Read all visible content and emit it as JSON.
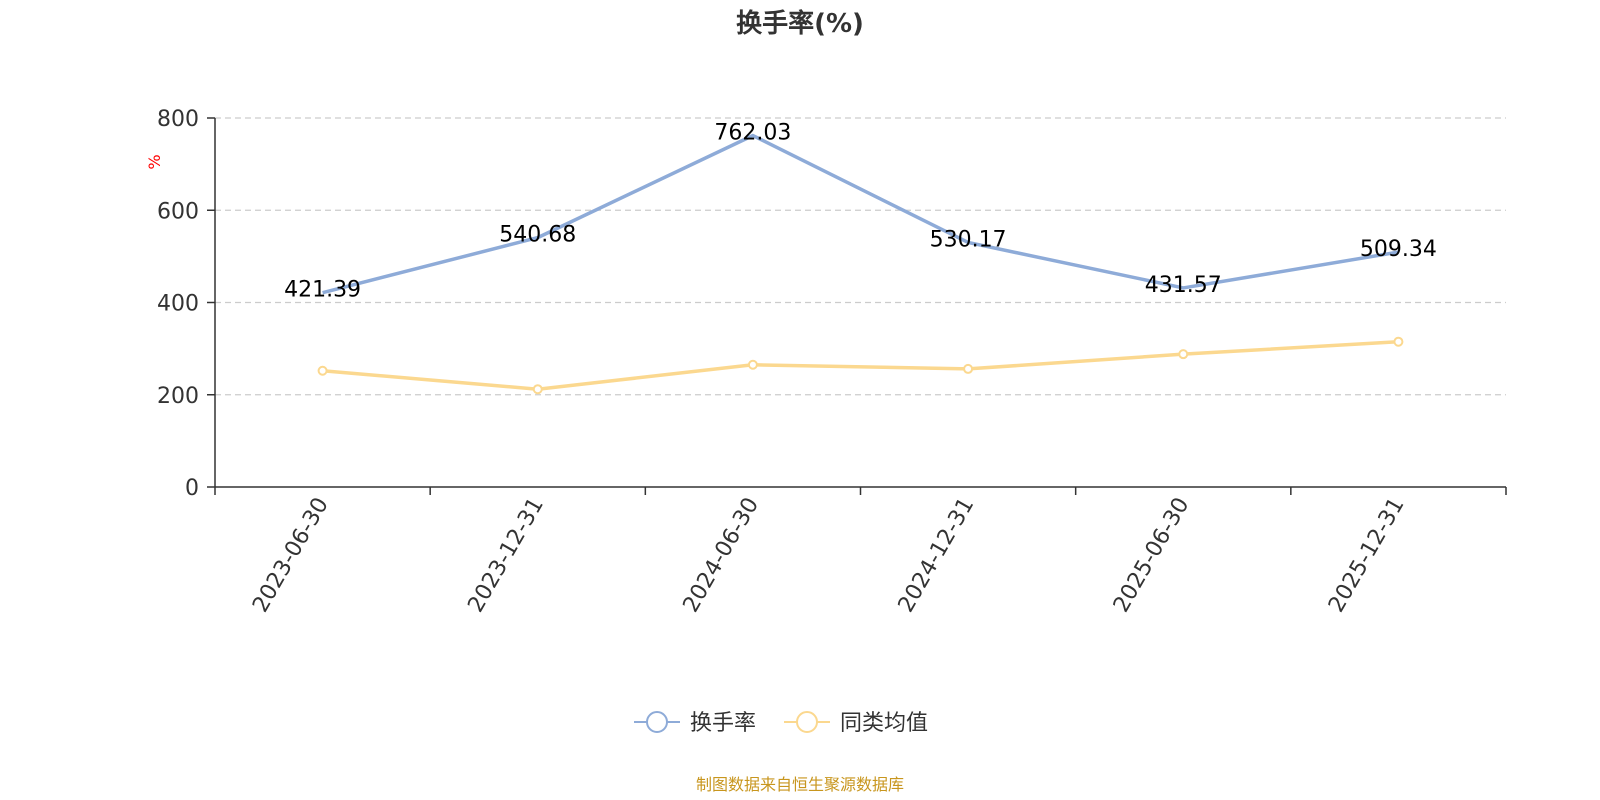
{
  "chart_data": {
    "type": "line",
    "title": "换手率(%)",
    "ylabel": "%",
    "xlabel": "",
    "ylim": [
      0,
      800
    ],
    "yticks": [
      0,
      200,
      400,
      600,
      800
    ],
    "categories": [
      "2023-06-30",
      "2023-12-31",
      "2024-06-30",
      "2024-12-31",
      "2025-06-30",
      "2025-12-31"
    ],
    "grid": true,
    "legend_placement": "bottom-center",
    "series": [
      {
        "name": "换手率",
        "color": "#8eabd8",
        "values": [
          421.39,
          540.68,
          762.03,
          530.17,
          431.57,
          509.34
        ],
        "data_labels": [
          "421.39",
          "540.68",
          "762.03",
          "530.17",
          "431.57",
          "509.34"
        ]
      },
      {
        "name": "同类均值",
        "color": "#fbd88f",
        "values": [
          252,
          212,
          265,
          256,
          288,
          315
        ]
      }
    ],
    "source_note": "制图数据来自恒生聚源数据库"
  }
}
